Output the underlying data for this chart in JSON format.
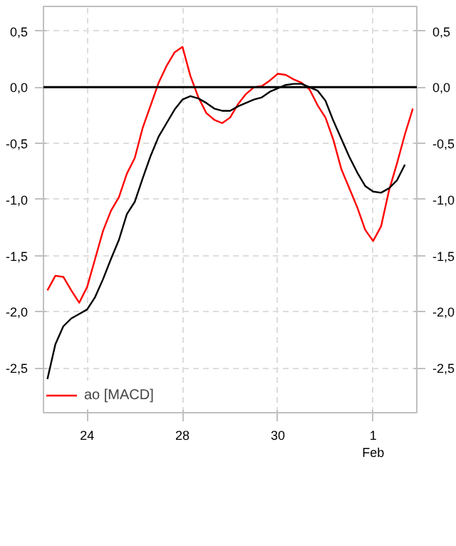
{
  "chart_data": {
    "type": "line",
    "categories": [
      null,
      null,
      null,
      null,
      null,
      "24",
      null,
      null,
      null,
      null,
      null,
      null,
      null,
      null,
      null,
      null,
      null,
      "28",
      null,
      null,
      null,
      null,
      null,
      null,
      null,
      null,
      null,
      null,
      null,
      "30",
      null,
      null,
      null,
      null,
      null,
      null,
      null,
      null,
      null,
      null,
      null,
      "1\nFeb",
      null,
      null,
      null,
      null,
      null
    ],
    "ylim": [
      -2.9,
      0.72
    ],
    "y2lim": [
      -2.9,
      0.72
    ],
    "yticks": [
      {
        "value": -2.5,
        "label": "-2,5"
      },
      {
        "value": -2,
        "label": "-2,0"
      },
      {
        "value": -1.5,
        "label": "-1,5"
      },
      {
        "value": -1,
        "label": "-1,0"
      },
      {
        "value": -0.5,
        "label": "-0,5"
      },
      {
        "value": 0,
        "label": "0,0"
      },
      {
        "value": 0.5,
        "label": "0,5"
      }
    ],
    "y2ticks": [
      {
        "value": -2.5,
        "label": "-2,5"
      },
      {
        "value": -2,
        "label": "-2,0"
      },
      {
        "value": -1.5,
        "label": "-1,5"
      },
      {
        "value": -1,
        "label": "-1,0"
      },
      {
        "value": -0.5,
        "label": "-0,5"
      },
      {
        "value": 0,
        "label": "0,0"
      },
      {
        "value": 0.5,
        "label": "0,5"
      }
    ],
    "grid": true,
    "legend": "bottom left",
    "line_style": "solid",
    "ref_lines": [
      {
        "axis": "y",
        "value": 0,
        "color": "#000000"
      }
    ],
    "series": [
      {
        "name": "ао [MACD]",
        "color": "#ff0000",
        "values": [
          -1.81,
          -1.68,
          -1.69,
          -1.81,
          -1.92,
          -1.78,
          -1.53,
          -1.28,
          -1.1,
          -0.98,
          -0.77,
          -0.63,
          -0.36,
          -0.16,
          0.04,
          0.19,
          0.31,
          0.36,
          0.1,
          -0.09,
          -0.23,
          -0.29,
          -0.32,
          -0.27,
          -0.15,
          -0.06,
          0.0,
          0.01,
          0.06,
          0.12,
          0.11,
          0.07,
          0.04,
          -0.02,
          -0.16,
          -0.27,
          -0.47,
          -0.73,
          -0.9,
          -1.07,
          -1.27,
          -1.37,
          -1.24,
          -0.92,
          -0.68,
          -0.42,
          -0.19
        ]
      },
      {
        "color": "#000000",
        "values": [
          -2.6,
          -2.29,
          -2.13,
          -2.06,
          -2.02,
          -1.98,
          -1.87,
          -1.71,
          -1.53,
          -1.36,
          -1.13,
          -1.02,
          -0.81,
          -0.61,
          -0.44,
          -0.32,
          -0.2,
          -0.11,
          -0.08,
          -0.1,
          -0.14,
          -0.19,
          -0.21,
          -0.21,
          -0.17,
          -0.14,
          -0.11,
          -0.09,
          -0.04,
          -0.01,
          0.02,
          0.03,
          0.03,
          0.0,
          -0.03,
          -0.12,
          -0.3,
          -0.46,
          -0.62,
          -0.76,
          -0.88,
          -0.93,
          -0.94,
          -0.9,
          -0.83,
          -0.69,
          null
        ]
      }
    ]
  }
}
